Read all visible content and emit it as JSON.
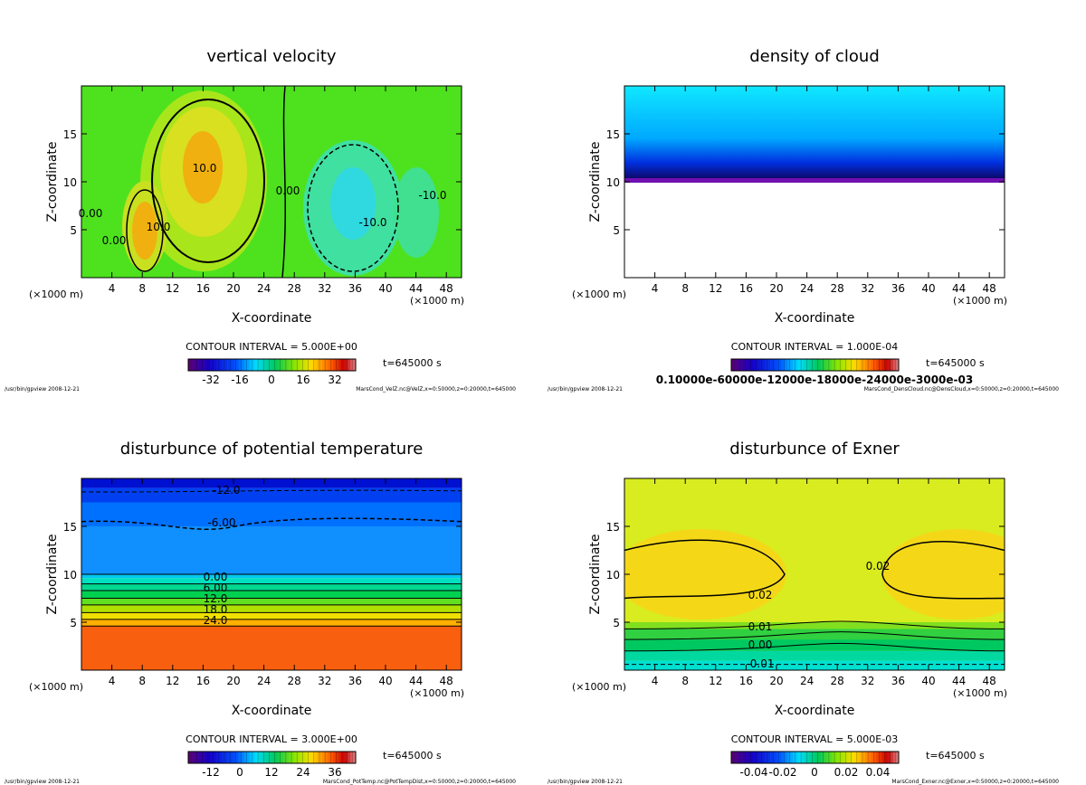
{
  "chart_data": [
    {
      "type": "heatmap",
      "title": "vertical velocity",
      "xlabel": "X-coordinate",
      "ylabel": "Z-coordinate",
      "x_unit_label": "(×1000 m)",
      "xlim": [
        0,
        50
      ],
      "ylim": [
        0,
        20
      ],
      "xticks": [
        4,
        8,
        12,
        16,
        20,
        24,
        28,
        32,
        36,
        40,
        44,
        48
      ],
      "yticks": [
        5,
        10,
        15
      ],
      "contour_interval": "CONTOUR INTERVAL = 5.000E+00",
      "time": "t=645000 s",
      "colorbar_ticks": [
        "-32",
        "-16",
        "0",
        "16",
        "32"
      ],
      "contour_labels": [
        "0.00",
        "0.00",
        "10.0",
        "10.0",
        "0.00",
        "-10.0",
        "-10.0"
      ],
      "footer_left": "/usr/bin/gpview  2008-12-21",
      "footer_right": "MarsCond_VelZ.nc@VelZ,x=0:50000,z=0:20000,t=645000"
    },
    {
      "type": "heatmap",
      "title": "density of cloud",
      "xlabel": "X-coordinate",
      "ylabel": "Z-coordinate",
      "x_unit_label": "(×1000 m)",
      "xlim": [
        0,
        50
      ],
      "ylim": [
        0,
        20
      ],
      "xticks": [
        4,
        8,
        12,
        16,
        20,
        24,
        28,
        32,
        36,
        40,
        44,
        48
      ],
      "yticks": [
        5,
        10,
        15
      ],
      "contour_interval": "CONTOUR INTERVAL = 1.000E-04",
      "time": "t=645000 s",
      "colorbar_ticks": [
        "0.10000e-60000e-12000e-18000e-24000e-3000e-03"
      ],
      "contour_labels": [],
      "footer_left": "/usr/bin/gpview  2008-12-21",
      "footer_right": "MarsCond_DensCloud.nc@DensCloud,x=0:50000,z=0:20000,t=645000"
    },
    {
      "type": "heatmap",
      "title": "disturbunce of potential temperature",
      "xlabel": "X-coordinate",
      "ylabel": "Z-coordinate",
      "x_unit_label": "(×1000 m)",
      "xlim": [
        0,
        50
      ],
      "ylim": [
        0,
        20
      ],
      "xticks": [
        4,
        8,
        12,
        16,
        20,
        24,
        28,
        32,
        36,
        40,
        44,
        48
      ],
      "yticks": [
        5,
        10,
        15
      ],
      "contour_interval": "CONTOUR INTERVAL = 3.000E+00",
      "time": "t=645000 s",
      "colorbar_ticks": [
        "-12",
        "0",
        "12",
        "24",
        "36"
      ],
      "contour_labels": [
        "-12.0",
        "-6.00",
        "0.00",
        "6.00",
        "12.0",
        "18.0",
        "24.0"
      ],
      "footer_left": "/usr/bin/gpview  2008-12-21",
      "footer_right": "MarsCond_PotTemp.nc@PotTempDist,x=0:50000,z=0:20000,t=645000"
    },
    {
      "type": "heatmap",
      "title": "disturbunce of Exner",
      "xlabel": "X-coordinate",
      "ylabel": "Z-coordinate",
      "x_unit_label": "(×1000 m)",
      "xlim": [
        0,
        50
      ],
      "ylim": [
        0,
        20
      ],
      "xticks": [
        4,
        8,
        12,
        16,
        20,
        24,
        28,
        32,
        36,
        40,
        44,
        48
      ],
      "yticks": [
        5,
        10,
        15
      ],
      "contour_interval": "CONTOUR INTERVAL = 5.000E-03",
      "time": "t=645000 s",
      "colorbar_ticks": [
        "-0.04",
        "-0.02",
        "0",
        "0.02",
        "0.04"
      ],
      "contour_labels": [
        "0.02",
        "0.02",
        "0.01",
        "0.00",
        "-0.01"
      ],
      "footer_left": "/usr/bin/gpview  2008-12-21",
      "footer_right": "MarsCond_Exner.nc@Exner,x=0:50000,z=0:20000,t=645000"
    }
  ]
}
